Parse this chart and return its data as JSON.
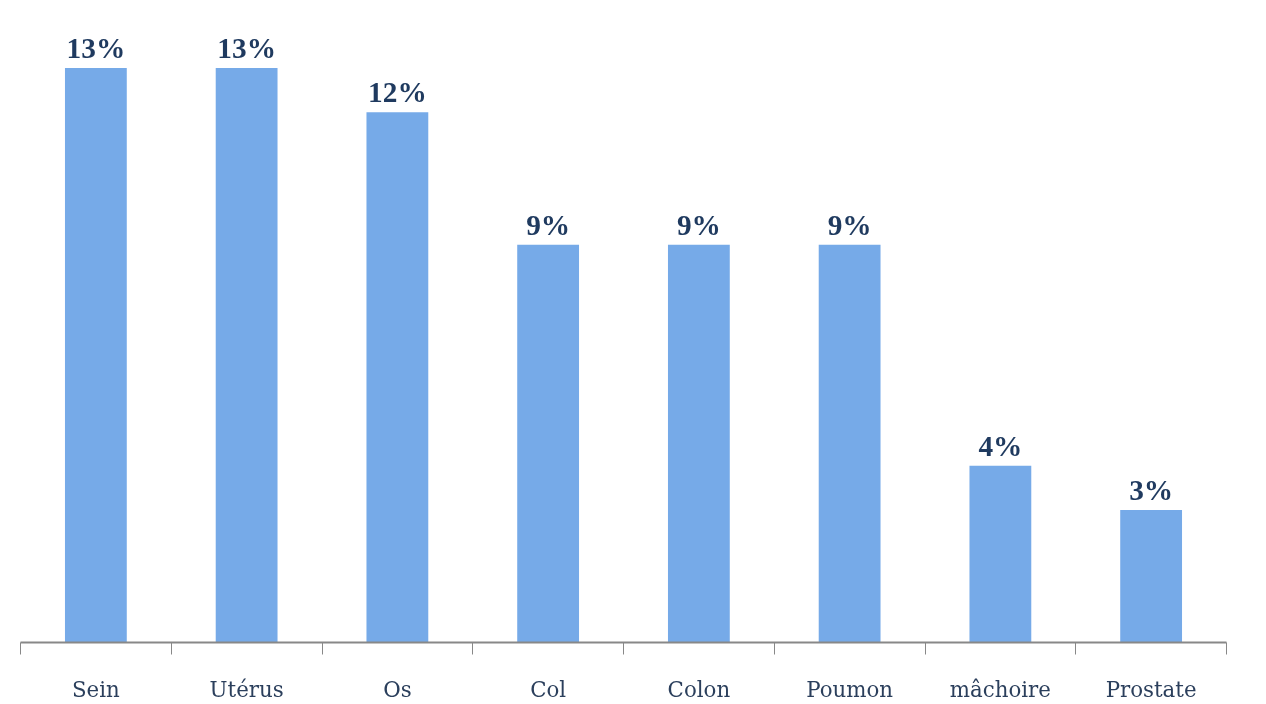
{
  "chart_data": {
    "type": "bar",
    "categories": [
      "Sein",
      "Utérus",
      "Os",
      "Col",
      "Colon",
      "Poumon",
      "mâchoire",
      "Prostate"
    ],
    "values": [
      13,
      13,
      12,
      9,
      9,
      9,
      4,
      3
    ],
    "value_labels": [
      "13%",
      "13%",
      "12%",
      "9%",
      "9%",
      "9%",
      "4%",
      "3%"
    ],
    "color": "#76aae8",
    "grid": false
  }
}
